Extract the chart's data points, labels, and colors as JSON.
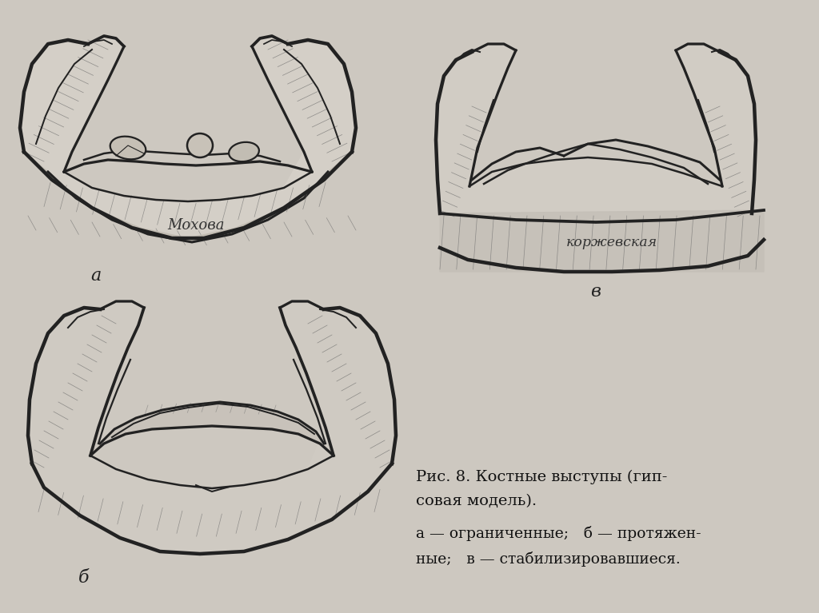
{
  "bg_color": "#cdc8c0",
  "text_color": "#111111",
  "drawing_color": "#222222",
  "hatch_color": "#666666",
  "fill_light": "#d0cac2",
  "fill_mid": "#b8b0a6",
  "fill_dark": "#9a9088",
  "line_width": 1.8,
  "title_text": "Рис. 8. Костные выступы (гип-",
  "title_line2": "совая модель).",
  "caption": "а — ограниченные; б — протяжен-",
  "caption2": "ные; в — стабилизировавшиеся.",
  "label_a": "а",
  "label_b": "б",
  "label_v": "в",
  "name_a": "Мохова",
  "name_v": "коржевская"
}
